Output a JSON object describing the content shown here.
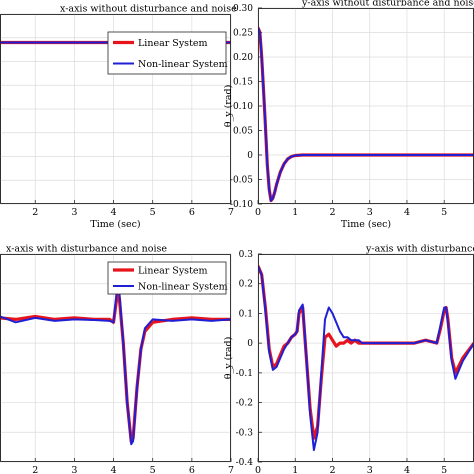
{
  "chart_data": [
    {
      "type": "line",
      "title": "x-axis without disturbance and noise",
      "xlabel": "Time (sec)",
      "ylabel": "",
      "xlim": [
        1.1,
        7
      ],
      "ylim": [
        -0.1,
        0.3
      ],
      "x_ticks": [
        2,
        3,
        4,
        5,
        6,
        7
      ],
      "y_ticks": [],
      "legend": [
        "Linear System",
        "Non-linear System"
      ],
      "legend_position": "top-right",
      "grid": true,
      "series": [
        {
          "name": "Linear System",
          "color": "#e8141b",
          "x": [
            1.1,
            7
          ],
          "y": [
            0.24,
            0.24
          ]
        },
        {
          "name": "Non-linear System",
          "color": "#1f1fd6",
          "x": [
            1.1,
            7
          ],
          "y": [
            0.24,
            0.24
          ]
        }
      ]
    },
    {
      "type": "line",
      "title": "y-axis without disturbance and noise",
      "xlabel": "Time (sec)",
      "ylabel": "θ_y (rad)",
      "xlim": [
        0,
        5.8
      ],
      "ylim": [
        -0.1,
        0.3
      ],
      "x_ticks": [
        0,
        1,
        2,
        3,
        4,
        5
      ],
      "y_ticks": [
        -0.1,
        -0.05,
        0,
        0.05,
        0.1,
        0.15,
        0.2,
        0.25,
        0.3
      ],
      "legend": [],
      "grid": true,
      "series": [
        {
          "name": "Linear System",
          "color": "#e8141b",
          "x": [
            0,
            0.05,
            0.1,
            0.15,
            0.2,
            0.25,
            0.3,
            0.35,
            0.4,
            0.45,
            0.5,
            0.6,
            0.7,
            0.8,
            0.9,
            1.0,
            1.2,
            1.5,
            2.0,
            3.0,
            4.0,
            5.0,
            5.8
          ],
          "y": [
            0.26,
            0.25,
            0.2,
            0.13,
            0.06,
            -0.02,
            -0.07,
            -0.093,
            -0.088,
            -0.075,
            -0.06,
            -0.035,
            -0.018,
            -0.008,
            -0.003,
            -0.001,
            0.0,
            0.0,
            0.0,
            0.0,
            0.0,
            0.0,
            0.0
          ]
        },
        {
          "name": "Non-linear System",
          "color": "#1f1fd6",
          "x": [
            0,
            0.05,
            0.1,
            0.15,
            0.2,
            0.25,
            0.3,
            0.35,
            0.4,
            0.45,
            0.5,
            0.6,
            0.7,
            0.8,
            0.9,
            1.0,
            1.2,
            1.5,
            2.0,
            3.0,
            4.0,
            5.0,
            5.8
          ],
          "y": [
            0.26,
            0.25,
            0.2,
            0.13,
            0.06,
            -0.02,
            -0.07,
            -0.093,
            -0.088,
            -0.075,
            -0.06,
            -0.035,
            -0.018,
            -0.008,
            -0.003,
            -0.001,
            0.0,
            0.0,
            0.0,
            0.0,
            0.0,
            0.0,
            0.0
          ]
        }
      ]
    },
    {
      "type": "line",
      "title": "x-axis with disturbance and noise",
      "xlabel": "Time (sec)",
      "ylabel": "",
      "xlim": [
        1.1,
        7
      ],
      "ylim": [
        -0.4,
        0.3
      ],
      "x_ticks": [
        2,
        3,
        4,
        5,
        6,
        7
      ],
      "y_ticks": [],
      "legend": [
        "Linear System",
        "Non-linear System"
      ],
      "legend_position": "top-right",
      "grid": true,
      "series": [
        {
          "name": "Linear System",
          "color": "#e8141b",
          "x": [
            1.1,
            1.5,
            2.0,
            2.5,
            3.0,
            3.5,
            3.9,
            4.0,
            4.1,
            4.15,
            4.25,
            4.35,
            4.45,
            4.5,
            4.6,
            4.7,
            4.8,
            5.0,
            5.5,
            6.0,
            6.5,
            7.0
          ],
          "y": [
            0.085,
            0.08,
            0.09,
            0.08,
            0.085,
            0.08,
            0.08,
            0.07,
            0.17,
            0.15,
            0.0,
            -0.2,
            -0.33,
            -0.32,
            -0.15,
            -0.02,
            0.04,
            0.07,
            0.08,
            0.085,
            0.08,
            0.08
          ]
        },
        {
          "name": "Non-linear System",
          "color": "#1f1fd6",
          "x": [
            1.1,
            1.5,
            2.0,
            2.5,
            3.0,
            3.5,
            3.9,
            4.0,
            4.1,
            4.15,
            4.25,
            4.35,
            4.45,
            4.5,
            4.6,
            4.7,
            4.8,
            5.0,
            5.5,
            6.0,
            6.5,
            7.0
          ],
          "y": [
            0.09,
            0.07,
            0.085,
            0.075,
            0.08,
            0.078,
            0.075,
            0.07,
            0.2,
            0.17,
            0.0,
            -0.2,
            -0.34,
            -0.33,
            -0.15,
            -0.02,
            0.05,
            0.08,
            0.075,
            0.08,
            0.075,
            0.08
          ]
        }
      ]
    },
    {
      "type": "line",
      "title": "y-axis with disturbance and",
      "xlabel": "Time (sec)",
      "ylabel": "θ_y (rad)",
      "xlim": [
        0,
        5.8
      ],
      "ylim": [
        -0.4,
        0.3
      ],
      "x_ticks": [
        0,
        1,
        2,
        3,
        4,
        5
      ],
      "y_ticks": [
        -0.4,
        -0.3,
        -0.2,
        -0.1,
        0,
        0.1,
        0.2,
        0.3
      ],
      "legend": [],
      "grid": true,
      "series": [
        {
          "name": "Linear System",
          "color": "#e8141b",
          "x": [
            0,
            0.1,
            0.2,
            0.3,
            0.4,
            0.5,
            0.6,
            0.7,
            0.8,
            0.9,
            1.0,
            1.05,
            1.1,
            1.2,
            1.3,
            1.4,
            1.5,
            1.6,
            1.7,
            1.8,
            1.9,
            2.0,
            2.1,
            2.2,
            2.3,
            2.4,
            2.5,
            2.6,
            2.7,
            2.8,
            3.0,
            3.3,
            3.6,
            3.9,
            4.2,
            4.5,
            4.8,
            4.9,
            5.0,
            5.05,
            5.1,
            5.2,
            5.3,
            5.5,
            5.8
          ],
          "y": [
            0.26,
            0.23,
            0.12,
            -0.02,
            -0.08,
            -0.07,
            -0.04,
            -0.01,
            0.0,
            0.02,
            0.03,
            0.04,
            0.1,
            0.12,
            -0.05,
            -0.22,
            -0.32,
            -0.28,
            -0.12,
            0.02,
            0.03,
            0.01,
            -0.01,
            0.0,
            0.0,
            0.01,
            0.0,
            0.01,
            0.0,
            0.0,
            0.0,
            0.0,
            0.0,
            0.0,
            0.0,
            0.01,
            0.0,
            0.05,
            0.11,
            0.12,
            0.08,
            -0.05,
            -0.1,
            -0.05,
            0.0
          ]
        },
        {
          "name": "Non-linear System",
          "color": "#1f1fd6",
          "x": [
            0,
            0.1,
            0.2,
            0.3,
            0.4,
            0.5,
            0.6,
            0.7,
            0.8,
            0.9,
            1.0,
            1.05,
            1.1,
            1.2,
            1.3,
            1.4,
            1.5,
            1.6,
            1.7,
            1.8,
            1.9,
            2.0,
            2.1,
            2.2,
            2.3,
            2.4,
            2.5,
            2.6,
            2.7,
            2.8,
            3.0,
            3.3,
            3.6,
            3.9,
            4.2,
            4.5,
            4.8,
            4.9,
            5.0,
            5.05,
            5.1,
            5.2,
            5.3,
            5.5,
            5.8
          ],
          "y": [
            0.26,
            0.23,
            0.11,
            -0.03,
            -0.09,
            -0.08,
            -0.05,
            -0.02,
            0.0,
            0.02,
            0.03,
            0.04,
            0.11,
            0.13,
            -0.05,
            -0.24,
            -0.36,
            -0.3,
            -0.1,
            0.08,
            0.12,
            0.1,
            0.07,
            0.04,
            0.02,
            0.02,
            0.01,
            0.01,
            0.01,
            0.0,
            0.0,
            0.0,
            0.0,
            0.0,
            0.0,
            0.01,
            0.0,
            0.06,
            0.12,
            0.12,
            0.07,
            -0.06,
            -0.12,
            -0.06,
            0.0
          ]
        }
      ]
    }
  ]
}
